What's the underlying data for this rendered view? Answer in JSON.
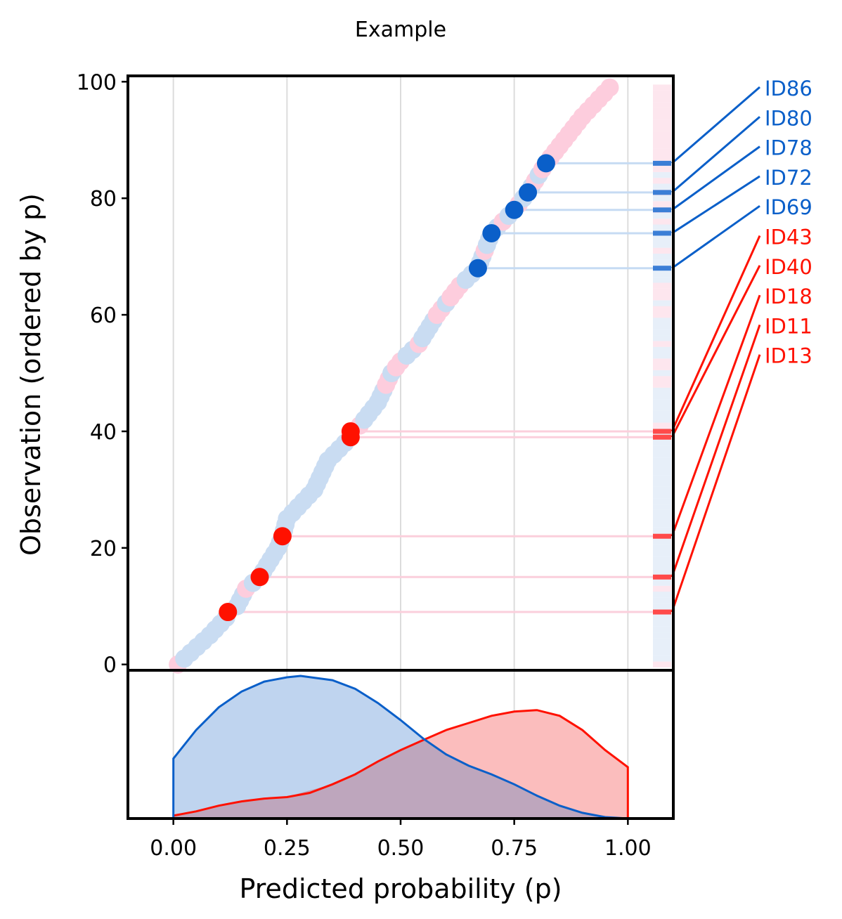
{
  "chart_data": {
    "type": "scatter",
    "title": "Example",
    "xlabel": "Predicted probability (p)",
    "ylabel": "Observation (ordered by p)",
    "xlim": [
      -0.1,
      1.1
    ],
    "ylim": [
      -1,
      101
    ],
    "xticks": [
      "0.00",
      "0.25",
      "0.50",
      "0.75",
      "1.00"
    ],
    "yticks": [
      "0",
      "20",
      "40",
      "60",
      "80",
      "100"
    ],
    "grid": "vertical",
    "colors": {
      "class0_light": "#c9dcf2",
      "class1_light": "#fdcddd",
      "class0_highlight": "#0a5fc9",
      "class1_highlight": "#ff1100",
      "class0_density_fill": "#bfd4ef",
      "class1_density_fill": "#fbbdbd",
      "overlap_fill": "#bea6bd"
    },
    "observations": {
      "order_min": 0,
      "order_max": 99,
      "p_at_order": [
        [
          0,
          0.01
        ],
        [
          5,
          0.08
        ],
        [
          10,
          0.14
        ],
        [
          13,
          0.16
        ],
        [
          15,
          0.19
        ],
        [
          20,
          0.23
        ],
        [
          22,
          0.24
        ],
        [
          25,
          0.25
        ],
        [
          30,
          0.31
        ],
        [
          35,
          0.34
        ],
        [
          39,
          0.39
        ],
        [
          41,
          0.41
        ],
        [
          45,
          0.45
        ],
        [
          50,
          0.48
        ],
        [
          52,
          0.5
        ],
        [
          55,
          0.54
        ],
        [
          60,
          0.58
        ],
        [
          65,
          0.63
        ],
        [
          68,
          0.67
        ],
        [
          72,
          0.69
        ],
        [
          74,
          0.7
        ],
        [
          78,
          0.75
        ],
        [
          81,
          0.78
        ],
        [
          86,
          0.82
        ],
        [
          90,
          0.86
        ],
        [
          94,
          0.9
        ],
        [
          99,
          0.96
        ]
      ]
    },
    "highlighted": [
      {
        "id": "ID86",
        "order": 86,
        "p": 0.82,
        "class": "class0"
      },
      {
        "id": "ID80",
        "order": 81,
        "p": 0.78,
        "class": "class0"
      },
      {
        "id": "ID78",
        "order": 78,
        "p": 0.75,
        "class": "class0"
      },
      {
        "id": "ID72",
        "order": 74,
        "p": 0.7,
        "class": "class0"
      },
      {
        "id": "ID69",
        "order": 68,
        "p": 0.67,
        "class": "class0"
      },
      {
        "id": "ID43",
        "order": 40,
        "p": 0.39,
        "class": "class1"
      },
      {
        "id": "ID40",
        "order": 39,
        "p": 0.39,
        "class": "class1"
      },
      {
        "id": "ID18",
        "order": 22,
        "p": 0.24,
        "class": "class1"
      },
      {
        "id": "ID11",
        "order": 15,
        "p": 0.19,
        "class": "class1"
      },
      {
        "id": "ID13",
        "order": 9,
        "p": 0.12,
        "class": "class1"
      }
    ],
    "density": {
      "x_range": [
        0,
        1
      ],
      "class0": [
        [
          0.0,
          0.42
        ],
        [
          0.05,
          0.62
        ],
        [
          0.1,
          0.78
        ],
        [
          0.15,
          0.89
        ],
        [
          0.2,
          0.96
        ],
        [
          0.25,
          0.99
        ],
        [
          0.28,
          1.0
        ],
        [
          0.35,
          0.97
        ],
        [
          0.4,
          0.91
        ],
        [
          0.45,
          0.81
        ],
        [
          0.5,
          0.69
        ],
        [
          0.55,
          0.56
        ],
        [
          0.6,
          0.45
        ],
        [
          0.65,
          0.37
        ],
        [
          0.7,
          0.31
        ],
        [
          0.75,
          0.24
        ],
        [
          0.8,
          0.16
        ],
        [
          0.85,
          0.09
        ],
        [
          0.9,
          0.04
        ],
        [
          0.95,
          0.01
        ],
        [
          1.0,
          0.0
        ]
      ],
      "class1": [
        [
          0.0,
          0.02
        ],
        [
          0.05,
          0.05
        ],
        [
          0.1,
          0.09
        ],
        [
          0.15,
          0.12
        ],
        [
          0.2,
          0.14
        ],
        [
          0.25,
          0.15
        ],
        [
          0.3,
          0.18
        ],
        [
          0.35,
          0.24
        ],
        [
          0.4,
          0.31
        ],
        [
          0.45,
          0.4
        ],
        [
          0.5,
          0.48
        ],
        [
          0.55,
          0.55
        ],
        [
          0.6,
          0.62
        ],
        [
          0.65,
          0.67
        ],
        [
          0.7,
          0.72
        ],
        [
          0.75,
          0.75
        ],
        [
          0.8,
          0.76
        ],
        [
          0.85,
          0.72
        ],
        [
          0.9,
          0.62
        ],
        [
          0.95,
          0.48
        ],
        [
          1.0,
          0.36
        ]
      ]
    }
  }
}
